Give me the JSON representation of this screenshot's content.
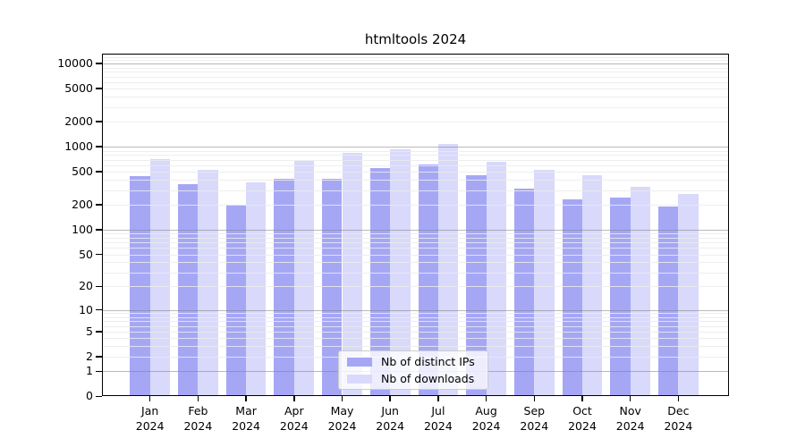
{
  "chart_data": {
    "type": "bar",
    "title": "htmltools 2024",
    "categories": [
      "Jan",
      "Feb",
      "Mar",
      "Apr",
      "May",
      "Jun",
      "Jul",
      "Aug",
      "Sep",
      "Oct",
      "Nov",
      "Dec"
    ],
    "x_year": "2024",
    "series": [
      {
        "key": "distinct-ips",
        "name": "Nb of distinct IPs",
        "color": "#a5a7f5",
        "values": [
          440,
          355,
          200,
          410,
          415,
          555,
          610,
          450,
          315,
          235,
          245,
          190
        ]
      },
      {
        "key": "downloads",
        "name": "Nb of downloads",
        "color": "#d8d9fb",
        "values": [
          720,
          530,
          370,
          670,
          850,
          930,
          1080,
          655,
          530,
          460,
          330,
          270
        ]
      }
    ],
    "y_ticks": [
      0,
      1,
      2,
      5,
      10,
      20,
      50,
      100,
      200,
      500,
      1000,
      2000,
      5000,
      10000
    ],
    "y_scale": "log10(value+1)",
    "ylim": [
      0,
      13200
    ],
    "grid": {
      "major_lines": [
        1,
        10,
        100,
        1000,
        10000
      ],
      "minor_lines": "2-9 per decade"
    },
    "legend_position": "bottom-center"
  }
}
